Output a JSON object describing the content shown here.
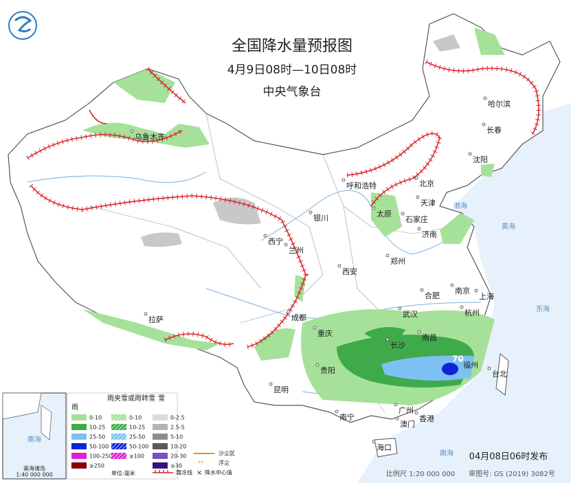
{
  "header": {
    "title": "全国降水量预报图",
    "period": "4月9日08时—10日08时",
    "agency": "中央气象台"
  },
  "cities": [
    "乌鲁木齐",
    "哈尔滨",
    "长春",
    "沈阳",
    "呼和浩特",
    "北京",
    "天津",
    "石家庄",
    "太原",
    "银川",
    "济南",
    "西宁",
    "兰州",
    "郑州",
    "西安",
    "合肥",
    "南京",
    "上海",
    "武汉",
    "杭州",
    "成都",
    "拉萨",
    "重庆",
    "长沙",
    "南昌",
    "福州",
    "台北",
    "贵阳",
    "昆明",
    "南宁",
    "广州",
    "香港",
    "澳门",
    "海口"
  ],
  "seas": [
    "渤海",
    "黄海",
    "东海",
    "南海"
  ],
  "peak_value": 70,
  "legend": {
    "rain": {
      "title": "雨",
      "items": [
        "0-10",
        "10-25",
        "25-50",
        "50-100",
        "100-250",
        "≥250"
      ]
    },
    "sleet": {
      "title": "雨夹雪或雨转雪",
      "items": [
        "0-10",
        "10-25",
        "25-50",
        "50-100",
        "≥100"
      ]
    },
    "snow": {
      "title": "雪",
      "items": [
        "0-2.5",
        "2.5-5",
        "5-10",
        "10-20",
        "20-30",
        "≥30"
      ]
    },
    "unit": "单位:毫米",
    "dust_area": "沙尘区",
    "dust": "浮尘",
    "frost_line": "霜冻线",
    "center": "降水中心值"
  },
  "inset": {
    "title": "南海诸岛",
    "scale": "1:40 000 000"
  },
  "footer": {
    "issued": "04月08日06时发布",
    "scale": "比例尺 1:20 000 000",
    "approval": "审图号: GS (2019) 3082号"
  }
}
